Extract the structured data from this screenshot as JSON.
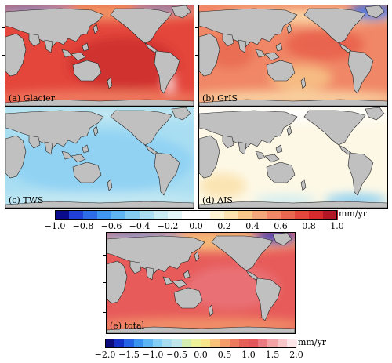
{
  "panels": [
    {
      "id": "a",
      "label": "(a) Glacier",
      "scheme": "glacier"
    },
    {
      "id": "b",
      "label": "(b) GrIS",
      "scheme": "gris"
    },
    {
      "id": "c",
      "label": "(c) TWS",
      "scheme": "tws"
    },
    {
      "id": "d",
      "label": "(d) AIS",
      "scheme": "ais"
    },
    {
      "id": "e",
      "label": "(e) total",
      "scheme": "total"
    }
  ],
  "colorbar_top": {
    "ticks": [
      "−1.0",
      "−0.8",
      "−0.6",
      "−0.4",
      "−0.2",
      "0.0",
      "0.2",
      "0.4",
      "0.6",
      "0.8",
      "1.0"
    ],
    "unit": "mm/yr",
    "colors": [
      "#0a0a8c",
      "#1f3fd6",
      "#2d6ee8",
      "#3f97f0",
      "#5fb6f2",
      "#86cdf3",
      "#a9def2",
      "#c9ebf3",
      "#e3f5f6",
      "#ffffff",
      "#ffffff",
      "#fdf3d2",
      "#fbe2ae",
      "#f8c88a",
      "#f4a77a",
      "#f08766",
      "#e9684f",
      "#e4473c",
      "#d72a2c",
      "#b21524"
    ]
  },
  "colorbar_bottom": {
    "ticks": [
      "−2.0",
      "−1.5",
      "−1.0",
      "−0.5",
      "0.0",
      "0.5",
      "1.0",
      "1.5",
      "2.0"
    ],
    "unit": "mm/yr",
    "colors": [
      "#0b0b7a",
      "#1530c4",
      "#2562e6",
      "#3a92ef",
      "#5cb4f1",
      "#86cdf3",
      "#a7dcf0",
      "#bfe7ea",
      "#d3eeb0",
      "#ecf19a",
      "#f8e58c",
      "#f6c27c",
      "#f29d6a",
      "#ec7a5e",
      "#e66058",
      "#e5565a",
      "#ea7a80",
      "#f2a3a6",
      "#f8c6c8",
      "#fde6e7"
    ]
  }
}
